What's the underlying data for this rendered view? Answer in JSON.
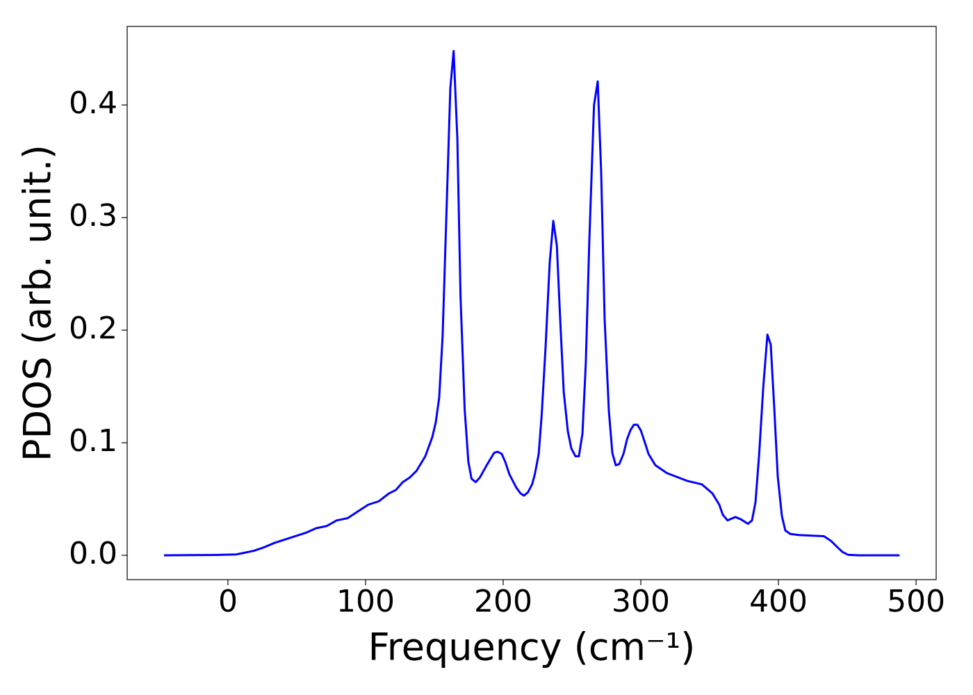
{
  "chart_data": {
    "type": "line",
    "xlabel": "Frequency (cm⁻¹)",
    "ylabel": "PDOS (arb. unit.)",
    "x": [
      -46.5,
      -9,
      6,
      11,
      18.7,
      26,
      33.8,
      41.4,
      49,
      56.6,
      64,
      71.7,
      79,
      87,
      94.4,
      102,
      109.6,
      117,
      122,
      127,
      132,
      137,
      143.4,
      148.5,
      151,
      153.5,
      156,
      161.6,
      164,
      166.7,
      169,
      172,
      174.7,
      177,
      180,
      183,
      188,
      193.4,
      196,
      199,
      201.5,
      204.5,
      209.6,
      212.6,
      215,
      218,
      221,
      223,
      225.8,
      228,
      230.8,
      233.8,
      236.4,
      239,
      241.4,
      244,
      247,
      249.5,
      252.5,
      255,
      257.6,
      260,
      262.6,
      266,
      268.7,
      271.2,
      273.7,
      276.8,
      279.3,
      281.8,
      284.3,
      287.4,
      290,
      292.4,
      295,
      297.5,
      300,
      303,
      305.6,
      310.6,
      319,
      334,
      344.4,
      352,
      357,
      359.6,
      363,
      368.7,
      372.7,
      377.8,
      380.8,
      383.3,
      386,
      389,
      392,
      394.4,
      397,
      399.5,
      402.5,
      405,
      408.6,
      415,
      433,
      438,
      443,
      446.5,
      450.5,
      458,
      488
    ],
    "values": [
      0,
      0.0003,
      0.0008,
      0.002,
      0.004,
      0.007,
      0.011,
      0.014,
      0.017,
      0.02,
      0.024,
      0.026,
      0.031,
      0.033,
      0.039,
      0.045,
      0.048,
      0.055,
      0.058,
      0.065,
      0.069,
      0.075,
      0.088,
      0.105,
      0.118,
      0.14,
      0.195,
      0.415,
      0.448,
      0.37,
      0.23,
      0.13,
      0.083,
      0.068,
      0.065,
      0.069,
      0.08,
      0.091,
      0.092,
      0.09,
      0.083,
      0.072,
      0.06,
      0.055,
      0.053,
      0.056,
      0.063,
      0.072,
      0.09,
      0.125,
      0.185,
      0.26,
      0.297,
      0.275,
      0.21,
      0.145,
      0.11,
      0.095,
      0.088,
      0.088,
      0.108,
      0.17,
      0.28,
      0.4,
      0.421,
      0.34,
      0.21,
      0.128,
      0.091,
      0.08,
      0.081,
      0.09,
      0.103,
      0.111,
      0.116,
      0.116,
      0.111,
      0.1,
      0.09,
      0.08,
      0.073,
      0.066,
      0.063,
      0.055,
      0.045,
      0.036,
      0.031,
      0.034,
      0.032,
      0.028,
      0.031,
      0.047,
      0.09,
      0.15,
      0.196,
      0.187,
      0.13,
      0.07,
      0.035,
      0.022,
      0.019,
      0.018,
      0.017,
      0.013,
      0.007,
      0.003,
      0.0005,
      0,
      0
    ],
    "color": "#0000ff",
    "xlim": [
      -73.2,
      514.6
    ],
    "xticks": [
      0,
      100,
      200,
      300,
      400,
      500
    ],
    "ylim": [
      -0.0216,
      0.4698
    ],
    "yticks": [
      {
        "value": 0,
        "label": "0.0"
      },
      0.1,
      0.2,
      0.3,
      0.4
    ],
    "grid": false
  }
}
